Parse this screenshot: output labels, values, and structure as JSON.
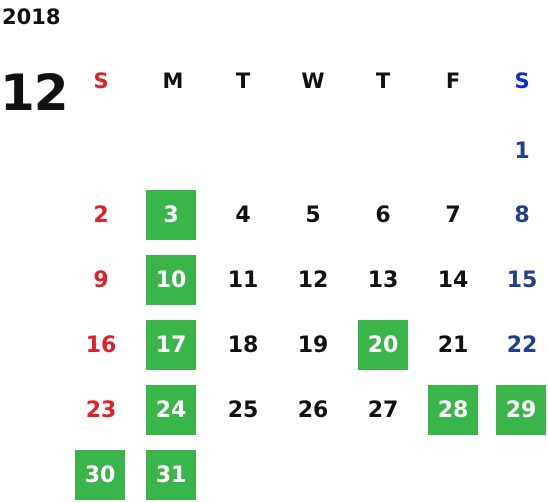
{
  "calendar": {
    "year": "2018",
    "month": "12",
    "weekdays": [
      {
        "label": "S",
        "color": "#e0202a"
      },
      {
        "label": "M",
        "color": "#111111"
      },
      {
        "label": "T",
        "color": "#111111"
      },
      {
        "label": "W",
        "color": "#111111"
      },
      {
        "label": "T",
        "color": "#111111"
      },
      {
        "label": "F",
        "color": "#111111"
      },
      {
        "label": "S",
        "color": "#0a2cd6"
      }
    ],
    "highlight_color": "#3ab54a",
    "weeks": [
      [
        null,
        null,
        null,
        null,
        null,
        null,
        {
          "day": "1",
          "hl": false
        }
      ],
      [
        {
          "day": "2",
          "hl": false
        },
        {
          "day": "3",
          "hl": true
        },
        {
          "day": "4",
          "hl": false
        },
        {
          "day": "5",
          "hl": false
        },
        {
          "day": "6",
          "hl": false
        },
        {
          "day": "7",
          "hl": false
        },
        {
          "day": "8",
          "hl": false
        }
      ],
      [
        {
          "day": "9",
          "hl": false
        },
        {
          "day": "10",
          "hl": true
        },
        {
          "day": "11",
          "hl": false
        },
        {
          "day": "12",
          "hl": false
        },
        {
          "day": "13",
          "hl": false
        },
        {
          "day": "14",
          "hl": false
        },
        {
          "day": "15",
          "hl": false
        }
      ],
      [
        {
          "day": "16",
          "hl": false
        },
        {
          "day": "17",
          "hl": true
        },
        {
          "day": "18",
          "hl": false
        },
        {
          "day": "19",
          "hl": false
        },
        {
          "day": "20",
          "hl": true
        },
        {
          "day": "21",
          "hl": false
        },
        {
          "day": "22",
          "hl": false
        }
      ],
      [
        {
          "day": "23",
          "hl": false
        },
        {
          "day": "24",
          "hl": true
        },
        {
          "day": "25",
          "hl": false
        },
        {
          "day": "26",
          "hl": false
        },
        {
          "day": "27",
          "hl": false
        },
        {
          "day": "28",
          "hl": true
        },
        {
          "day": "29",
          "hl": true
        }
      ],
      [
        {
          "day": "30",
          "hl": true
        },
        {
          "day": "31",
          "hl": true
        },
        null,
        null,
        null,
        null,
        null
      ]
    ]
  }
}
